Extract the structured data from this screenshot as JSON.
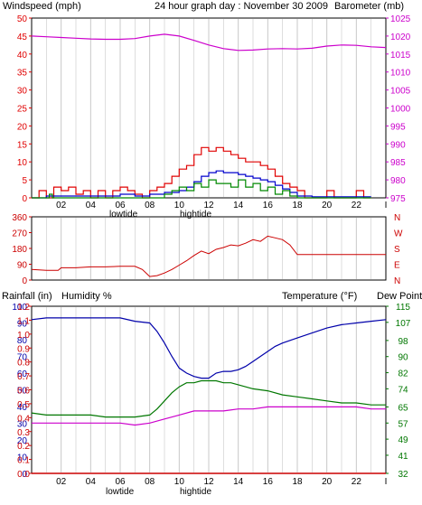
{
  "title": "24 hour graph day : November 30 2009",
  "colors": {
    "wind": "#e00000",
    "wind_avg": "#0000cc",
    "wind_low": "#008800",
    "barometer": "#cc00cc",
    "direction": "#cc0000",
    "humidity": "#0000aa",
    "temperature": "#007700",
    "dewpoint": "#cc00cc",
    "rainfall": "#cc0000",
    "grid": "#c8c8c8",
    "frame": "#000000"
  },
  "x_tick_labels": [
    "02",
    "04",
    "06",
    "08",
    "10",
    "12",
    "14",
    "16",
    "18",
    "20",
    "22"
  ],
  "x_end_mark": "I",
  "tide_labels": {
    "low": "lowtide",
    "high": "hightide"
  },
  "chart_data": [
    {
      "type": "line",
      "name": "top",
      "left_axis_label": "Windspeed (mph)",
      "right_axis_label": "Barometer (mb)",
      "left_ticks": [
        0,
        5,
        10,
        15,
        20,
        25,
        30,
        35,
        40,
        45,
        50
      ],
      "ylim_left": [
        0,
        50
      ],
      "right_ticks": [
        975,
        980,
        985,
        990,
        995,
        1000,
        1005,
        1010,
        1015,
        1020,
        1025
      ],
      "ylim_right": [
        975,
        1025
      ],
      "xlim": [
        0,
        24
      ],
      "series": [
        {
          "key": "barometer",
          "axis": "right",
          "x": [
            0,
            1,
            2,
            3,
            4,
            5,
            6,
            7,
            8,
            9,
            10,
            11,
            12,
            13,
            14,
            15,
            16,
            17,
            18,
            19,
            20,
            21,
            22,
            23,
            24
          ],
          "values": [
            1020,
            1019.8,
            1019.6,
            1019.4,
            1019.2,
            1019.1,
            1019.1,
            1019.3,
            1020,
            1020.5,
            1020,
            1018.8,
            1017.5,
            1016.5,
            1016,
            1016.1,
            1016.4,
            1016.5,
            1016.4,
            1016.6,
            1017.2,
            1017.5,
            1017.4,
            1017,
            1016.8
          ]
        },
        {
          "key": "wind",
          "axis": "left",
          "x": [
            0,
            0.5,
            1,
            1.5,
            2,
            2.5,
            3,
            3.5,
            4,
            4.5,
            5,
            5.5,
            6,
            6.5,
            7,
            7.5,
            8,
            8.5,
            9,
            9.5,
            10,
            10.5,
            11,
            11.5,
            12,
            12.5,
            13,
            13.5,
            14,
            14.5,
            15,
            15.5,
            16,
            16.5,
            17,
            17.5,
            18,
            18.5,
            19,
            19.5,
            20,
            20.5,
            21,
            21.5,
            22,
            22.5,
            23
          ],
          "values": [
            0,
            2,
            0,
            3,
            2,
            3,
            1,
            2,
            0,
            2,
            0,
            2,
            3,
            2,
            1,
            0,
            2,
            3,
            4,
            6,
            8,
            9,
            12,
            14,
            13,
            14,
            13,
            12,
            11,
            10,
            10,
            9,
            8,
            6,
            4,
            3,
            2,
            0,
            0,
            0,
            2,
            0,
            0,
            0,
            2,
            0,
            0
          ]
        },
        {
          "key": "wind_avg",
          "axis": "left",
          "x": [
            0,
            1,
            2,
            3,
            4,
            5,
            6,
            7,
            8,
            9,
            10,
            10.5,
            11,
            11.5,
            12,
            12.5,
            13,
            13.5,
            14,
            14.5,
            15,
            15.5,
            16,
            16.5,
            17,
            17.5,
            18,
            19,
            20,
            21,
            22,
            23
          ],
          "values": [
            0,
            0.5,
            0.5,
            0.5,
            0.5,
            0.5,
            1,
            0.5,
            1,
            1.5,
            2,
            3,
            4.5,
            6,
            7,
            7.5,
            7,
            7,
            6.5,
            6,
            5.5,
            5,
            4.5,
            3.5,
            2.5,
            1.5,
            0.5,
            0.3,
            0.3,
            0.3,
            0.3,
            0.3
          ]
        },
        {
          "key": "wind_low",
          "axis": "left",
          "x": [
            0,
            1,
            1.2,
            1.4,
            2,
            3,
            4,
            5,
            6,
            7,
            8,
            9,
            9.5,
            10,
            10.5,
            11,
            11.5,
            12,
            12.5,
            13,
            13.5,
            14,
            14.5,
            15,
            15.5,
            16,
            16.5,
            17,
            17.5,
            18,
            19,
            20,
            21,
            22,
            23
          ],
          "values": [
            0,
            0,
            1,
            0,
            0,
            0,
            0,
            0,
            0,
            0,
            0,
            1,
            2,
            3,
            2,
            4,
            3,
            5,
            4,
            4,
            3,
            5,
            3,
            4,
            2,
            3,
            1,
            2,
            0.5,
            0,
            0,
            0,
            0,
            0,
            0
          ]
        }
      ]
    },
    {
      "type": "line",
      "name": "direction",
      "left_ticks": [
        0,
        90,
        180,
        270,
        360
      ],
      "ylim_left": [
        0,
        360
      ],
      "compass_labels": [
        "N",
        "W",
        "S",
        "E",
        "N"
      ],
      "xlim": [
        0,
        24
      ],
      "series": [
        {
          "key": "direction",
          "axis": "left",
          "x": [
            0,
            1,
            1.8,
            2,
            3,
            4,
            5,
            6,
            7,
            7.5,
            8,
            8.5,
            9,
            9.5,
            10,
            10.5,
            11,
            11.5,
            12,
            12.5,
            13,
            13.5,
            14,
            14.5,
            15,
            15.5,
            16,
            16.5,
            17,
            17.5,
            18,
            19,
            20,
            21,
            22,
            23,
            24
          ],
          "values": [
            60,
            55,
            55,
            70,
            70,
            75,
            75,
            78,
            78,
            60,
            20,
            25,
            40,
            60,
            85,
            110,
            140,
            165,
            150,
            175,
            185,
            200,
            195,
            210,
            230,
            220,
            250,
            240,
            230,
            200,
            145,
            145,
            145,
            145,
            145,
            145,
            145
          ]
        }
      ]
    },
    {
      "type": "line",
      "name": "bottom",
      "left_axis_label_1": "Rainfall (in)",
      "left_axis_label_2": "Humidity %",
      "right_axis_label_1": "Temperature (°F)",
      "right_axis_label_2": "Dew Point",
      "humidity_ticks": [
        0,
        10,
        20,
        30,
        40,
        50,
        60,
        70,
        80,
        90,
        100
      ],
      "rain_ticks": [
        "0.0",
        "0.1",
        "0.2",
        "0.3",
        "0.4",
        "0.5",
        "0.6",
        "0.7",
        "0.8",
        "0.9",
        "1.0",
        "1.1",
        "1.2"
      ],
      "temperature_ticks": [
        32,
        41,
        49,
        57,
        65,
        74,
        82,
        90,
        98,
        107,
        115
      ],
      "ylim_left": [
        0,
        100
      ],
      "ylim_right": [
        32,
        115
      ],
      "xlim": [
        0,
        24
      ],
      "series": [
        {
          "key": "humidity",
          "axis": "left",
          "x": [
            0,
            1,
            2,
            3,
            4,
            5,
            6,
            7,
            8,
            8.5,
            9,
            9.5,
            10,
            10.5,
            11,
            11.5,
            12,
            12.5,
            13,
            13.5,
            14,
            14.5,
            15,
            15.5,
            16,
            16.5,
            17,
            18,
            19,
            20,
            21,
            22,
            23,
            24
          ],
          "values": [
            92,
            93,
            93,
            93,
            93,
            93,
            93,
            91,
            90,
            85,
            78,
            70,
            63,
            60,
            58,
            57,
            57,
            60,
            61,
            61,
            62,
            64,
            67,
            70,
            73,
            76,
            78,
            81,
            84,
            87,
            89,
            90,
            91,
            92
          ]
        },
        {
          "key": "temperature",
          "axis": "right",
          "x": [
            0,
            1,
            2,
            3,
            4,
            5,
            6,
            7,
            8,
            8.5,
            9,
            9.5,
            10,
            10.5,
            11,
            11.5,
            12,
            12.5,
            13,
            13.5,
            14,
            15,
            16,
            17,
            18,
            19,
            20,
            21,
            22,
            23,
            24
          ],
          "values": [
            62,
            61,
            61,
            61,
            61,
            60,
            60,
            60,
            61,
            64,
            68,
            72,
            75,
            77,
            77,
            78,
            78,
            78,
            77,
            77,
            76,
            74,
            73,
            71,
            70,
            69,
            68,
            67,
            67,
            66,
            66
          ]
        },
        {
          "key": "dewpoint",
          "axis": "right",
          "x": [
            0,
            1,
            2,
            3,
            4,
            5,
            6,
            7,
            8,
            9,
            10,
            11,
            12,
            13,
            14,
            15,
            16,
            17,
            18,
            19,
            20,
            21,
            22,
            23,
            24
          ],
          "values": [
            57,
            57,
            57,
            57,
            57,
            57,
            57,
            56,
            57,
            59,
            61,
            63,
            63,
            63,
            64,
            64,
            65,
            65,
            65,
            65,
            65,
            65,
            65,
            64,
            64
          ]
        },
        {
          "key": "rainfall",
          "axis": "left",
          "x": [
            0,
            24
          ],
          "values": [
            0,
            0
          ]
        }
      ]
    }
  ]
}
